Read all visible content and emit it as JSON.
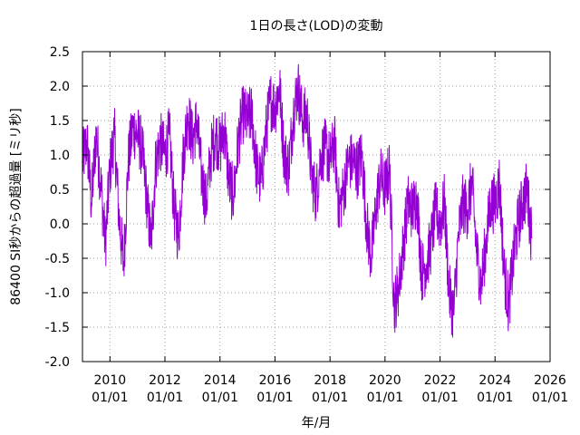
{
  "chart_data": {
    "type": "line",
    "title": "1日の長さ(LOD)の変動",
    "xlabel": "年/月",
    "ylabel": "86400 SI秒からの超過量 [ミリ秒]",
    "xlim": [
      "2009-01-01",
      "2026-01-01"
    ],
    "ylim": [
      -2.0,
      2.5
    ],
    "grid": true,
    "legend": "none",
    "colors": {
      "series": "#9400d3",
      "grid": "#a0a0a0",
      "axis": "#000000"
    },
    "x_ticks": [
      {
        "date": "2010-01-01",
        "label_year": "2010",
        "label_md": "01/01"
      },
      {
        "date": "2012-01-01",
        "label_year": "2012",
        "label_md": "01/01"
      },
      {
        "date": "2014-01-01",
        "label_year": "2014",
        "label_md": "01/01"
      },
      {
        "date": "2016-01-01",
        "label_year": "2016",
        "label_md": "01/01"
      },
      {
        "date": "2018-01-01",
        "label_year": "2018",
        "label_md": "01/01"
      },
      {
        "date": "2020-01-01",
        "label_year": "2020",
        "label_md": "01/01"
      },
      {
        "date": "2022-01-01",
        "label_year": "2022",
        "label_md": "01/01"
      },
      {
        "date": "2024-01-01",
        "label_year": "2024",
        "label_md": "01/01"
      },
      {
        "date": "2026-01-01",
        "label_year": "2026",
        "label_md": "01/01"
      }
    ],
    "y_ticks": [
      {
        "value": 2.5,
        "label": "2.5"
      },
      {
        "value": 2.0,
        "label": "2.0"
      },
      {
        "value": 1.5,
        "label": "1.5"
      },
      {
        "value": 1.0,
        "label": "1.0"
      },
      {
        "value": 0.5,
        "label": "0.5"
      },
      {
        "value": 0.0,
        "label": "0.0"
      },
      {
        "value": -0.5,
        "label": "-0.5"
      },
      {
        "value": -1.0,
        "label": "-1.0"
      },
      {
        "value": -1.5,
        "label": "-1.5"
      },
      {
        "value": -2.0,
        "label": "-2.0"
      }
    ],
    "series": [
      {
        "x": [
          "2009-01-01",
          "2009-03-01",
          "2009-05-01",
          "2009-07-01",
          "2009-09-01",
          "2009-11-01",
          "2010-01-01",
          "2010-03-01",
          "2010-05-01",
          "2010-07-01",
          "2010-09-01",
          "2010-11-01",
          "2011-01-01",
          "2011-03-01",
          "2011-05-01",
          "2011-07-01",
          "2011-09-01",
          "2011-11-01",
          "2012-01-01",
          "2012-03-01",
          "2012-05-01",
          "2012-07-01",
          "2012-09-01",
          "2012-11-01",
          "2013-01-01",
          "2013-03-01",
          "2013-05-01",
          "2013-07-01",
          "2013-09-01",
          "2013-11-01",
          "2014-01-01",
          "2014-03-01",
          "2014-05-01",
          "2014-07-01",
          "2014-09-01",
          "2014-11-01",
          "2015-01-01",
          "2015-03-01",
          "2015-05-01",
          "2015-07-01",
          "2015-09-01",
          "2015-11-01",
          "2016-01-01",
          "2016-03-01",
          "2016-05-01",
          "2016-07-01",
          "2016-09-01",
          "2016-11-01",
          "2017-01-01",
          "2017-03-01",
          "2017-05-01",
          "2017-07-01",
          "2017-09-01",
          "2017-11-01",
          "2018-01-01",
          "2018-03-01",
          "2018-05-01",
          "2018-07-01",
          "2018-09-01",
          "2018-11-01",
          "2019-01-01",
          "2019-03-01",
          "2019-05-01",
          "2019-07-01",
          "2019-09-01",
          "2019-11-01",
          "2020-01-01",
          "2020-03-01",
          "2020-05-01",
          "2020-07-01",
          "2020-09-01",
          "2020-11-01",
          "2021-01-01",
          "2021-03-01",
          "2021-05-01",
          "2021-07-01",
          "2021-09-01",
          "2021-11-01",
          "2022-01-01",
          "2022-03-01",
          "2022-05-01",
          "2022-07-01",
          "2022-09-01",
          "2022-11-01",
          "2023-01-01",
          "2023-03-01",
          "2023-05-01",
          "2023-07-01",
          "2023-09-01",
          "2023-11-01",
          "2024-01-01",
          "2024-03-01",
          "2024-05-01",
          "2024-07-01",
          "2024-09-01",
          "2024-11-01",
          "2025-01-01",
          "2025-03-01",
          "2025-05-01"
        ],
        "y": [
          0.9,
          1.2,
          0.3,
          1.3,
          0.6,
          -0.3,
          0.8,
          1.3,
          0.1,
          -0.6,
          0.9,
          1.4,
          1.3,
          1.1,
          0.4,
          -0.3,
          0.9,
          1.2,
          1.0,
          1.3,
          0.2,
          -0.2,
          1.0,
          1.6,
          1.2,
          1.5,
          0.7,
          0.3,
          1.0,
          1.3,
          1.1,
          1.4,
          0.6,
          0.4,
          1.2,
          1.6,
          1.5,
          1.6,
          0.8,
          0.6,
          1.3,
          1.8,
          1.7,
          2.0,
          1.0,
          0.8,
          1.6,
          2.0,
          1.5,
          1.6,
          0.7,
          0.4,
          1.0,
          1.1,
          0.9,
          1.2,
          0.2,
          0.5,
          0.9,
          0.9,
          0.8,
          1.0,
          0.0,
          -0.5,
          0.2,
          0.7,
          0.5,
          0.8,
          -1.2,
          -0.9,
          -0.3,
          0.3,
          0.2,
          0.4,
          -0.7,
          -0.6,
          -0.3,
          0.2,
          0.0,
          0.3,
          -1.0,
          -1.3,
          -0.2,
          0.3,
          0.2,
          0.6,
          -0.4,
          -0.9,
          -0.3,
          0.3,
          0.3,
          0.6,
          -0.7,
          -1.2,
          -0.5,
          0.0,
          0.3,
          0.5,
          -0.2
        ]
      }
    ]
  }
}
